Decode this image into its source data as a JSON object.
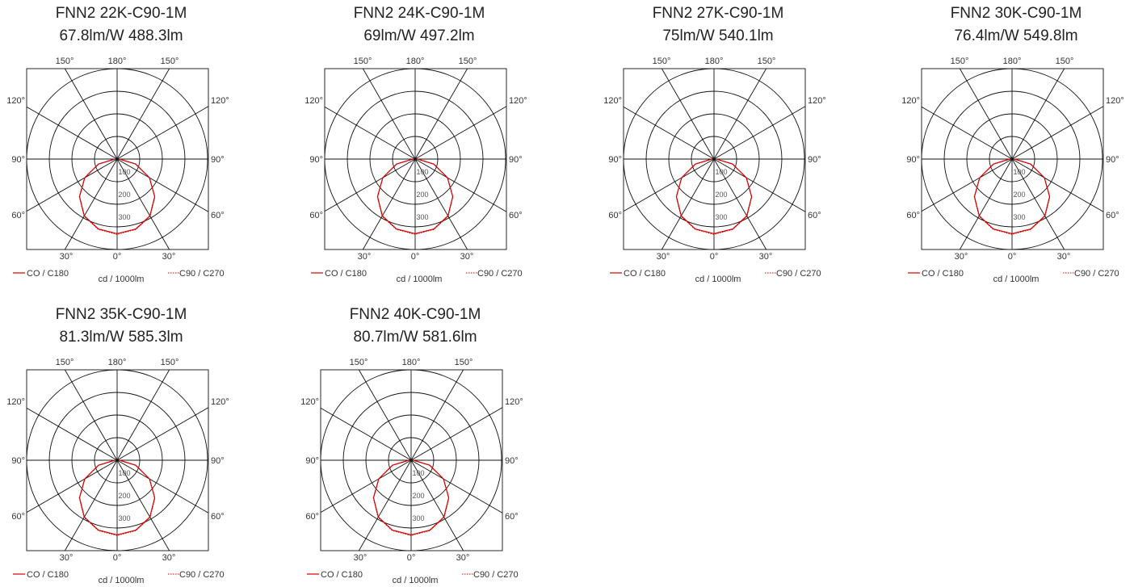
{
  "legend": {
    "c0": "CO / C180",
    "c90": "C90 / C270",
    "unit": "cd / 1000lm"
  },
  "colors": {
    "curve": "#d40000",
    "grid": "#111111",
    "text": "#333333"
  },
  "angle_labels": {
    "top": [
      "150°",
      "180°",
      "150°"
    ],
    "upper_side": "120°",
    "mid_side": "90°",
    "lower_side": "60°",
    "bottom": [
      "30°",
      "0°",
      "30°"
    ]
  },
  "ring_labels": [
    "100",
    "200",
    "300"
  ],
  "chart_data": [
    {
      "type": "polar",
      "title": "FNN2 22K-C90-1M",
      "subtitle": "67.8lm/W  488.3lm",
      "radial_unit": "cd / 1000lm",
      "r_ticks": [
        100,
        200,
        300
      ],
      "r_max": 400,
      "series": [
        {
          "name": "CO / C180",
          "style": "solid",
          "angles_deg": [
            0,
            15,
            30,
            45,
            60,
            75,
            90
          ],
          "values": [
            330,
            320,
            290,
            235,
            165,
            85,
            10
          ]
        },
        {
          "name": "C90 / C270",
          "style": "dotted",
          "angles_deg": [
            0,
            15,
            30,
            45,
            60,
            75,
            90
          ],
          "values": [
            333,
            322,
            292,
            236,
            166,
            86,
            10
          ]
        }
      ]
    },
    {
      "type": "polar",
      "title": "FNN2 24K-C90-1M",
      "subtitle": "69lm/W  497.2lm",
      "radial_unit": "cd / 1000lm",
      "r_ticks": [
        100,
        200,
        300
      ],
      "r_max": 400,
      "series": [
        {
          "name": "CO / C180",
          "style": "solid",
          "angles_deg": [
            0,
            15,
            30,
            45,
            60,
            75,
            90
          ],
          "values": [
            330,
            320,
            290,
            235,
            165,
            85,
            10
          ]
        },
        {
          "name": "C90 / C270",
          "style": "dotted",
          "angles_deg": [
            0,
            15,
            30,
            45,
            60,
            75,
            90
          ],
          "values": [
            333,
            322,
            292,
            236,
            166,
            86,
            10
          ]
        }
      ]
    },
    {
      "type": "polar",
      "title": "FNN2 27K-C90-1M",
      "subtitle": "75lm/W  540.1lm",
      "radial_unit": "cd / 1000lm",
      "r_ticks": [
        100,
        200,
        300
      ],
      "r_max": 400,
      "series": [
        {
          "name": "CO / C180",
          "style": "solid",
          "angles_deg": [
            0,
            15,
            30,
            45,
            60,
            75,
            90
          ],
          "values": [
            330,
            320,
            290,
            235,
            165,
            85,
            10
          ]
        },
        {
          "name": "C90 / C270",
          "style": "dotted",
          "angles_deg": [
            0,
            15,
            30,
            45,
            60,
            75,
            90
          ],
          "values": [
            333,
            322,
            292,
            236,
            166,
            86,
            10
          ]
        }
      ]
    },
    {
      "type": "polar",
      "title": "FNN2 30K-C90-1M",
      "subtitle": "76.4lm/W  549.8lm",
      "radial_unit": "cd / 1000lm",
      "r_ticks": [
        100,
        200,
        300
      ],
      "r_max": 400,
      "series": [
        {
          "name": "CO / C180",
          "style": "solid",
          "angles_deg": [
            0,
            15,
            30,
            45,
            60,
            75,
            90
          ],
          "values": [
            330,
            320,
            290,
            235,
            165,
            85,
            10
          ]
        },
        {
          "name": "C90 / C270",
          "style": "dotted",
          "angles_deg": [
            0,
            15,
            30,
            45,
            60,
            75,
            90
          ],
          "values": [
            333,
            322,
            292,
            236,
            166,
            86,
            10
          ]
        }
      ]
    },
    {
      "type": "polar",
      "title": "FNN2 35K-C90-1M",
      "subtitle": "81.3lm/W  585.3lm",
      "radial_unit": "cd / 1000lm",
      "r_ticks": [
        100,
        200,
        300
      ],
      "r_max": 400,
      "series": [
        {
          "name": "CO / C180",
          "style": "solid",
          "angles_deg": [
            0,
            15,
            30,
            45,
            60,
            75,
            90
          ],
          "values": [
            330,
            320,
            290,
            235,
            165,
            85,
            10
          ]
        },
        {
          "name": "C90 / C270",
          "style": "dotted",
          "angles_deg": [
            0,
            15,
            30,
            45,
            60,
            75,
            90
          ],
          "values": [
            333,
            322,
            292,
            236,
            166,
            86,
            10
          ]
        }
      ]
    },
    {
      "type": "polar",
      "title": "FNN2 40K-C90-1M",
      "subtitle": "80.7lm/W  581.6lm",
      "radial_unit": "cd / 1000lm",
      "r_ticks": [
        100,
        200,
        300
      ],
      "r_max": 400,
      "series": [
        {
          "name": "CO / C180",
          "style": "solid",
          "angles_deg": [
            0,
            15,
            30,
            45,
            60,
            75,
            90
          ],
          "values": [
            330,
            320,
            290,
            235,
            165,
            85,
            10
          ]
        },
        {
          "name": "C90 / C270",
          "style": "dotted",
          "angles_deg": [
            0,
            15,
            30,
            45,
            60,
            75,
            90
          ],
          "values": [
            333,
            322,
            292,
            236,
            166,
            86,
            10
          ]
        }
      ]
    }
  ]
}
